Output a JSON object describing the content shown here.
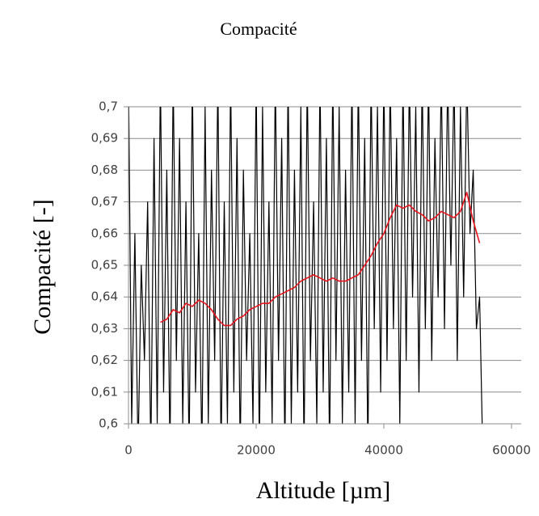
{
  "chart_data": {
    "type": "line",
    "title": "Compacité",
    "xlabel": "Altitude [µm]",
    "ylabel": "Compacité [-]",
    "xlim": [
      0,
      60000
    ],
    "xticks": [
      0,
      20000,
      40000,
      60000
    ],
    "ylim": [
      0.6,
      0.7
    ],
    "yticks": [
      {
        "value": 0.6,
        "label": "0,6"
      },
      {
        "value": 0.61,
        "label": "0,61"
      },
      {
        "value": 0.62,
        "label": "0,62"
      },
      {
        "value": 0.63,
        "label": "0,63"
      },
      {
        "value": 0.64,
        "label": "0,64"
      },
      {
        "value": 0.65,
        "label": "0,65"
      },
      {
        "value": 0.66,
        "label": "0,66"
      },
      {
        "value": 0.67,
        "label": "0,67"
      },
      {
        "value": 0.68,
        "label": "0,68"
      },
      {
        "value": 0.69,
        "label": "0,69"
      },
      {
        "value": 0.7,
        "label": "0,7"
      }
    ],
    "grid": true,
    "series": [
      {
        "color": "#000000",
        "x": [
          0,
          500,
          1000,
          1500,
          2000,
          2500,
          3000,
          3500,
          4000,
          4500,
          5000,
          5500,
          6000,
          6500,
          7000,
          7500,
          8000,
          8500,
          9000,
          9500,
          10000,
          10500,
          11000,
          11500,
          12000,
          12500,
          13000,
          13500,
          14000,
          14500,
          15000,
          15500,
          16000,
          16500,
          17000,
          17500,
          18000,
          18500,
          19000,
          19500,
          20000,
          20500,
          21000,
          21500,
          22000,
          22500,
          23000,
          23500,
          24000,
          24500,
          25000,
          25500,
          26000,
          26500,
          27000,
          27500,
          28000,
          28500,
          29000,
          29500,
          30000,
          30500,
          31000,
          31500,
          32000,
          32500,
          33000,
          33500,
          34000,
          34500,
          35000,
          35500,
          36000,
          36500,
          37000,
          37500,
          38000,
          38500,
          39000,
          39500,
          40000,
          40500,
          41000,
          41500,
          42000,
          42500,
          43000,
          43500,
          44000,
          44500,
          45000,
          45500,
          46000,
          46500,
          47000,
          47500,
          48000,
          48500,
          49000,
          49500,
          50000,
          50500,
          51000,
          51500,
          52000,
          52500,
          53000,
          53500,
          54000,
          54500,
          55000,
          55500
        ],
        "values": [
          0.71,
          0.6,
          0.66,
          0.59,
          0.65,
          0.62,
          0.67,
          0.59,
          0.69,
          0.6,
          0.71,
          0.61,
          0.68,
          0.59,
          0.71,
          0.62,
          0.69,
          0.6,
          0.67,
          0.59,
          0.71,
          0.61,
          0.66,
          0.59,
          0.7,
          0.6,
          0.68,
          0.62,
          0.71,
          0.59,
          0.67,
          0.6,
          0.71,
          0.61,
          0.69,
          0.59,
          0.68,
          0.62,
          0.66,
          0.6,
          0.71,
          0.59,
          0.7,
          0.61,
          0.67,
          0.6,
          0.71,
          0.62,
          0.69,
          0.59,
          0.71,
          0.6,
          0.68,
          0.61,
          0.7,
          0.59,
          0.71,
          0.62,
          0.67,
          0.6,
          0.71,
          0.61,
          0.69,
          0.59,
          0.71,
          0.62,
          0.7,
          0.6,
          0.68,
          0.61,
          0.71,
          0.6,
          0.71,
          0.62,
          0.69,
          0.59,
          0.71,
          0.63,
          0.7,
          0.61,
          0.71,
          0.62,
          0.71,
          0.63,
          0.69,
          0.6,
          0.71,
          0.62,
          0.71,
          0.64,
          0.7,
          0.61,
          0.71,
          0.63,
          0.71,
          0.62,
          0.69,
          0.64,
          0.71,
          0.63,
          0.71,
          0.65,
          0.71,
          0.62,
          0.7,
          0.64,
          0.71,
          0.66,
          0.68,
          0.63,
          0.64,
          0.59
        ]
      },
      {
        "color": "#e8141c",
        "x": [
          5000,
          6000,
          7000,
          8000,
          9000,
          10000,
          11000,
          12000,
          13000,
          14000,
          15000,
          16000,
          17000,
          18000,
          19000,
          20000,
          21000,
          22000,
          23000,
          24000,
          25000,
          26000,
          27000,
          28000,
          29000,
          30000,
          31000,
          32000,
          33000,
          34000,
          35000,
          36000,
          37000,
          38000,
          39000,
          40000,
          41000,
          42000,
          43000,
          44000,
          45000,
          46000,
          47000,
          48000,
          49000,
          50000,
          51000,
          52000,
          53000,
          54000,
          55000
        ],
        "values": [
          0.632,
          0.633,
          0.636,
          0.635,
          0.638,
          0.637,
          0.639,
          0.638,
          0.636,
          0.633,
          0.631,
          0.631,
          0.633,
          0.634,
          0.636,
          0.637,
          0.638,
          0.638,
          0.64,
          0.641,
          0.642,
          0.643,
          0.645,
          0.646,
          0.647,
          0.646,
          0.645,
          0.646,
          0.645,
          0.645,
          0.646,
          0.647,
          0.65,
          0.653,
          0.657,
          0.66,
          0.665,
          0.669,
          0.668,
          0.669,
          0.667,
          0.666,
          0.664,
          0.665,
          0.667,
          0.666,
          0.665,
          0.667,
          0.673,
          0.664,
          0.657
        ]
      }
    ]
  }
}
